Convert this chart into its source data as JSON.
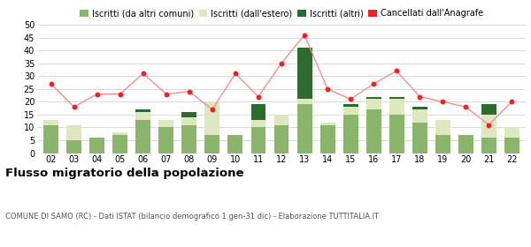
{
  "years": [
    "02",
    "03",
    "04",
    "05",
    "06",
    "07",
    "08",
    "09",
    "10",
    "11",
    "12",
    "13",
    "14",
    "15",
    "16",
    "17",
    "18",
    "19",
    "20",
    "21",
    "22"
  ],
  "iscritti_altri_comuni": [
    11,
    5,
    6,
    7,
    13,
    10,
    11,
    7,
    7,
    10,
    11,
    19,
    11,
    15,
    17,
    15,
    12,
    7,
    7,
    6,
    6
  ],
  "iscritti_estero": [
    2,
    6,
    0,
    1,
    3,
    3,
    3,
    13,
    0,
    3,
    4,
    2,
    1,
    3,
    4,
    6,
    5,
    6,
    0,
    9,
    4
  ],
  "iscritti_altri": [
    0,
    0,
    0,
    0,
    1,
    0,
    2,
    0,
    0,
    6,
    0,
    20,
    0,
    1,
    1,
    1,
    1,
    0,
    0,
    4,
    0
  ],
  "cancellati": [
    27,
    18,
    23,
    23,
    31,
    23,
    24,
    17,
    31,
    22,
    35,
    46,
    25,
    21,
    27,
    32,
    22,
    20,
    18,
    11,
    20
  ],
  "color_altri_comuni": "#8ab56a",
  "color_estero": "#dde8c0",
  "color_altri": "#2d6a2d",
  "color_cancellati": "#ee2222",
  "color_cancellati_line": "#f09090",
  "ylim": [
    0,
    50
  ],
  "yticks": [
    0,
    5,
    10,
    15,
    20,
    25,
    30,
    35,
    40,
    45,
    50
  ],
  "title": "Flusso migratorio della popolazione",
  "subtitle": "COMUNE DI SAMO (RC) - Dati ISTAT (bilancio demografico 1 gen-31 dic) - Elaborazione TUTTITALIA.IT",
  "legend_labels": [
    "Iscritti (da altri comuni)",
    "Iscritti (dall'estero)",
    "Iscritti (altri)",
    "Cancellati dall'Anagrafe"
  ],
  "bg_color": "#ffffff",
  "grid_color": "#cccccc"
}
